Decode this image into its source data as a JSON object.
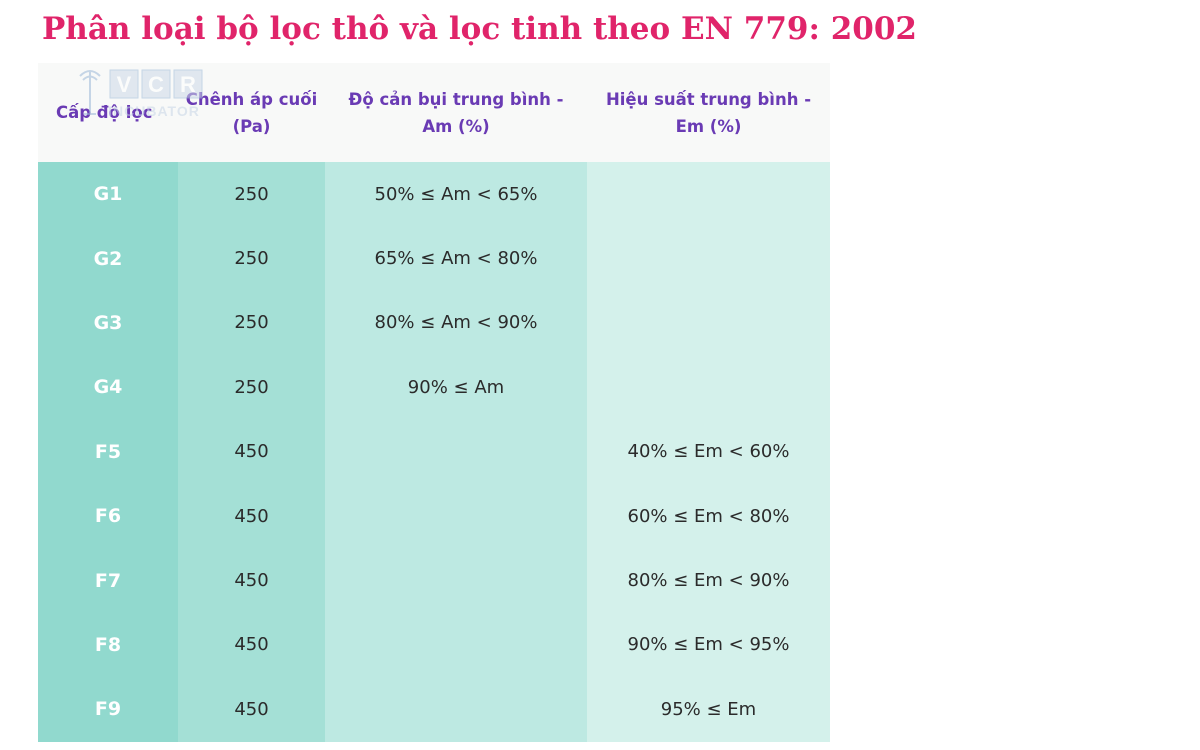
{
  "title": "Phân loại bộ lọc thô và lọc tinh theo EN 779: 2002",
  "logo": {
    "text": "VCR",
    "subtext": "INCUBATOR",
    "icon": "tower-icon"
  },
  "table": {
    "headers": [
      "Cấp độ lọc",
      "Chênh áp cuối (Pa)",
      "Độ cản bụi trung bình - Am (%)",
      "Hiệu suất trung bình - Em  (%)"
    ],
    "rows": [
      {
        "level": "G1",
        "pressure": "250",
        "arrestance": "50% ≤ Am < 65%",
        "efficiency": ""
      },
      {
        "level": "G2",
        "pressure": "250",
        "arrestance": "65% ≤ Am < 80%",
        "efficiency": ""
      },
      {
        "level": "G3",
        "pressure": "250",
        "arrestance": "80% ≤ Am < 90%",
        "efficiency": ""
      },
      {
        "level": "G4",
        "pressure": "250",
        "arrestance": "90% ≤ Am",
        "efficiency": ""
      },
      {
        "level": "F5",
        "pressure": "450",
        "arrestance": "",
        "efficiency": "40% ≤ Em < 60%"
      },
      {
        "level": "F6",
        "pressure": "450",
        "arrestance": "",
        "efficiency": "60% ≤ Em < 80%"
      },
      {
        "level": "F7",
        "pressure": "450",
        "arrestance": "",
        "efficiency": "80% ≤ Em < 90%"
      },
      {
        "level": "F8",
        "pressure": "450",
        "arrestance": "",
        "efficiency": "90% ≤ Em < 95%"
      },
      {
        "level": "F9",
        "pressure": "450",
        "arrestance": "",
        "efficiency": "95% ≤ Em"
      }
    ]
  },
  "colors": {
    "title": "#e0246a",
    "header_text": "#6a3bb4",
    "col1_bg": "#91d9ce",
    "col2_bg": "#a4e0d6",
    "col3_bg": "#bde9e2",
    "col4_bg": "#d4f1eb"
  }
}
